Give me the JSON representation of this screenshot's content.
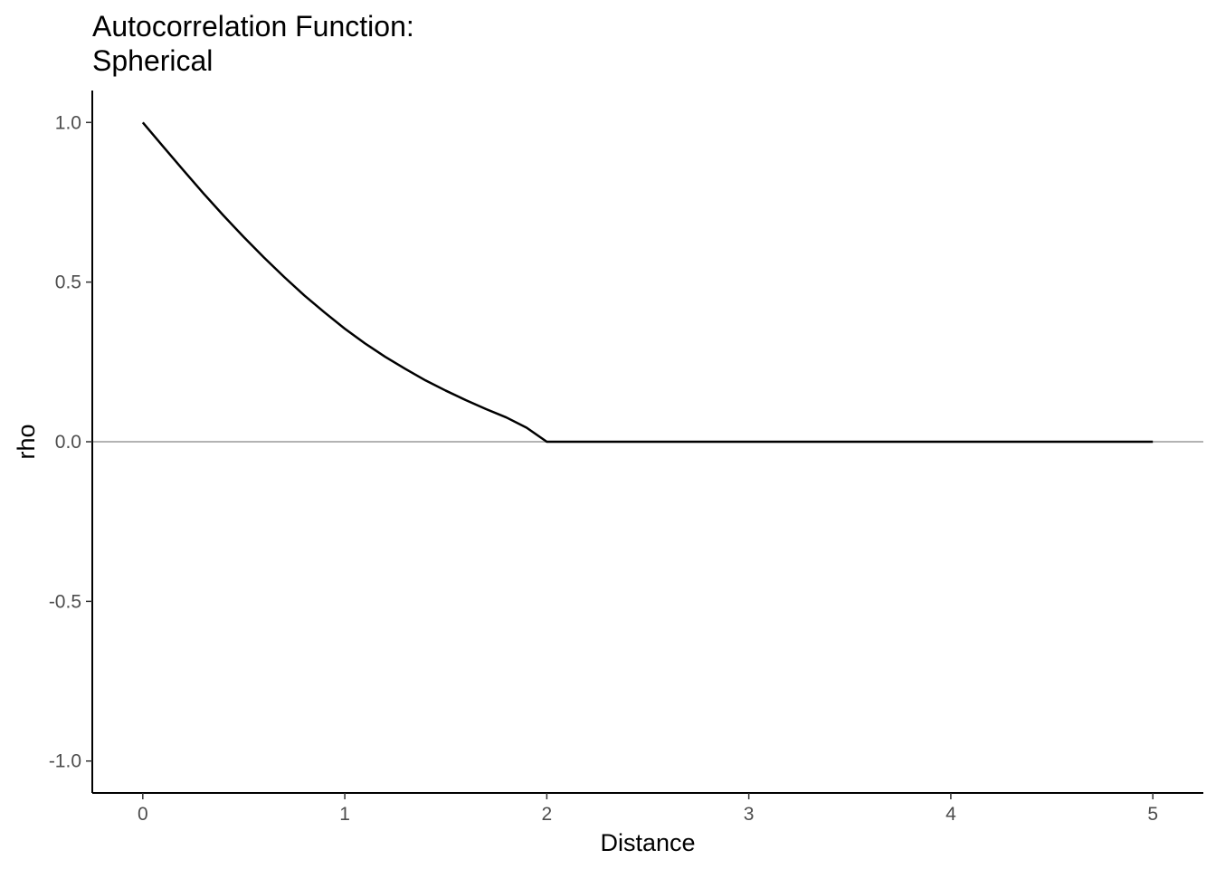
{
  "chart_data": {
    "type": "line",
    "title_lines": [
      "Autocorrelation Function:",
      "Spherical"
    ],
    "xlabel": "Distance",
    "ylabel": "rho",
    "xlim": [
      -0.25,
      5.25
    ],
    "ylim": [
      -1.1,
      1.1
    ],
    "x_ticks": [
      0,
      1,
      2,
      3,
      4,
      5
    ],
    "x_tick_labels": [
      "0",
      "1",
      "2",
      "3",
      "4",
      "5"
    ],
    "y_ticks": [
      -1.0,
      -0.5,
      0.0,
      0.5,
      1.0
    ],
    "y_tick_labels": [
      "-1.0",
      "-0.5",
      "0.0",
      "0.5",
      "1.0"
    ],
    "grid": false,
    "reference_line": {
      "y": 0,
      "color": "#b3b3b3"
    },
    "series": [
      {
        "color": "#000000",
        "x": [
          0,
          0.1,
          0.2,
          0.3,
          0.4,
          0.5,
          0.6,
          0.7,
          0.8,
          0.9,
          1.0,
          1.1,
          1.2,
          1.3,
          1.4,
          1.5,
          1.6,
          1.7,
          1.8,
          1.9,
          2.0,
          2.5,
          3.0,
          3.5,
          4.0,
          4.5,
          5.0
        ],
        "y": [
          1.0,
          0.925,
          0.851,
          0.778,
          0.708,
          0.641,
          0.577,
          0.516,
          0.458,
          0.405,
          0.354,
          0.308,
          0.266,
          0.228,
          0.192,
          0.16,
          0.13,
          0.102,
          0.076,
          0.044,
          0.0,
          0.0,
          0.0,
          0.0,
          0.0,
          0.0,
          0.0
        ]
      }
    ]
  }
}
